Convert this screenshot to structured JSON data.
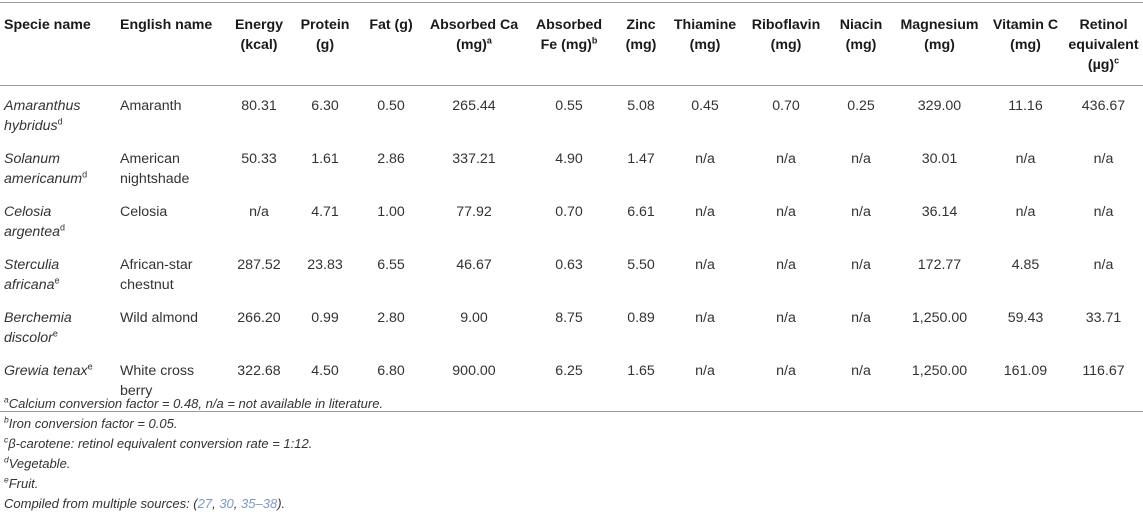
{
  "headers": {
    "species": "Specie name",
    "english": "English name",
    "energy": "Energy (kcal)",
    "protein": "Protein (g)",
    "fat": "Fat (g)",
    "absorbed_ca": "Absorbed Ca (mg)",
    "absorbed_ca_sup": "a",
    "absorbed_fe": "Absorbed Fe (mg)",
    "absorbed_fe_sup": "b",
    "zinc": "Zinc (mg)",
    "thiamine": "Thiamine (mg)",
    "riboflavin": "Riboflavin (mg)",
    "niacin": "Niacin (mg)",
    "magnesium": "Magnesium (mg)",
    "vitamin_c": "Vitamin C (mg)",
    "retinol": "Retinol equivalent (µg)",
    "retinol_sup": "c"
  },
  "rows": [
    {
      "species": "Amaranthus hybridus",
      "sup": "d",
      "english": "Amaranth",
      "energy": "80.31",
      "protein": "6.30",
      "fat": "0.50",
      "ca": "265.44",
      "fe": "0.55",
      "zinc": "5.08",
      "thiamine": "0.45",
      "riboflavin": "0.70",
      "niacin": "0.25",
      "magnesium": "329.00",
      "vitc": "11.16",
      "retinol": "436.67"
    },
    {
      "species": "Solanum americanum",
      "sup": "d",
      "english": "American nightshade",
      "energy": "50.33",
      "protein": "1.61",
      "fat": "2.86",
      "ca": "337.21",
      "fe": "4.90",
      "zinc": "1.47",
      "thiamine": "n/a",
      "riboflavin": "n/a",
      "niacin": "n/a",
      "magnesium": "30.01",
      "vitc": "n/a",
      "retinol": "n/a"
    },
    {
      "species": "Celosia argentea",
      "sup": "d",
      "english": "Celosia",
      "energy": "n/a",
      "protein": "4.71",
      "fat": "1.00",
      "ca": "77.92",
      "fe": "0.70",
      "zinc": "6.61",
      "thiamine": "n/a",
      "riboflavin": "n/a",
      "niacin": "n/a",
      "magnesium": "36.14",
      "vitc": "n/a",
      "retinol": "n/a"
    },
    {
      "species": "Sterculia africana",
      "sup": "e",
      "english": "African-star chestnut",
      "energy": "287.52",
      "protein": "23.83",
      "fat": "6.55",
      "ca": "46.67",
      "fe": "0.63",
      "zinc": "5.50",
      "thiamine": "n/a",
      "riboflavin": "n/a",
      "niacin": "n/a",
      "magnesium": "172.77",
      "vitc": "4.85",
      "retinol": "n/a"
    },
    {
      "species": "Berchemia discolor",
      "sup": "e",
      "english": "Wild almond",
      "energy": "266.20",
      "protein": "0.99",
      "fat": "2.80",
      "ca": "9.00",
      "fe": "8.75",
      "zinc": "0.89",
      "thiamine": "n/a",
      "riboflavin": "n/a",
      "niacin": "n/a",
      "magnesium": "1,250.00",
      "vitc": "59.43",
      "retinol": "33.71"
    },
    {
      "species": "Grewia tenax",
      "sup": "e",
      "english": "White cross berry",
      "energy": "322.68",
      "protein": "4.50",
      "fat": "6.80",
      "ca": "900.00",
      "fe": "6.25",
      "zinc": "1.65",
      "thiamine": "n/a",
      "riboflavin": "n/a",
      "niacin": "n/a",
      "magnesium": "1,250.00",
      "vitc": "161.09",
      "retinol": "116.67"
    }
  ],
  "footnotes": {
    "a": {
      "mark": "a",
      "text": "Calcium conversion factor = 0.48, n/a = not available in literature."
    },
    "b": {
      "mark": "b",
      "text": "Iron conversion factor = 0.05."
    },
    "c": {
      "mark": "c",
      "text": "β-carotene: retinol equivalent conversion rate = 1:12."
    },
    "d": {
      "mark": "d",
      "text": "Vegetable."
    },
    "e": {
      "mark": "e",
      "text": "Fruit."
    },
    "source_prefix": "Compiled from multiple sources: (",
    "ref1": "27",
    "sep1": ", ",
    "ref2": "30",
    "sep2": ", ",
    "ref3": "35–38",
    "source_suffix": ")."
  },
  "colors": {
    "rule": "#9a9a9a",
    "text": "#333333",
    "link": "#7a9cc0"
  }
}
